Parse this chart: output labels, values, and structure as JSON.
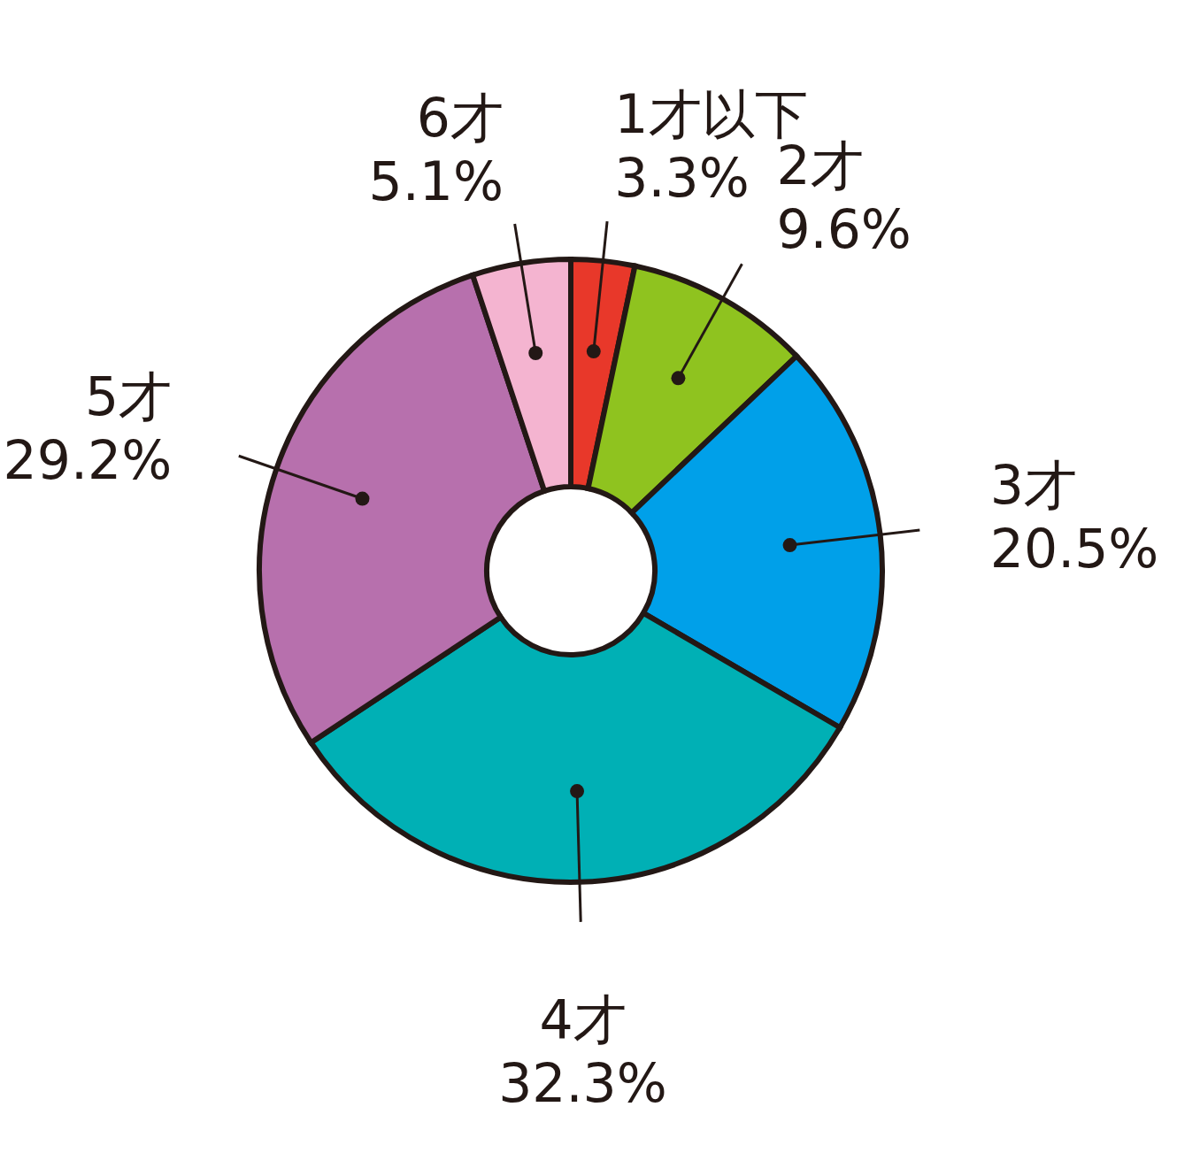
{
  "chart_data": {
    "type": "donut",
    "categories": [
      "1才以下",
      "2才",
      "3才",
      "4才",
      "5才",
      "6才"
    ],
    "values": [
      3.3,
      9.6,
      20.5,
      32.3,
      29.2,
      5.1
    ],
    "value_labels": [
      "3.3%",
      "9.6%",
      "20.5%",
      "32.3%",
      "29.2%",
      "5.1%"
    ],
    "colors": [
      "#e8382a",
      "#8fc31f",
      "#00a0e9",
      "#00b0b5",
      "#b770ad",
      "#f4b4d0"
    ],
    "legend": false
  }
}
